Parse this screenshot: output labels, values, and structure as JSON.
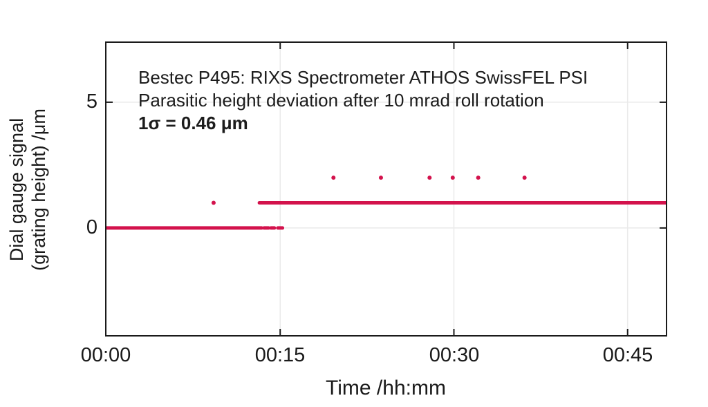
{
  "figure": {
    "background": "#ffffff",
    "text_color": "#1a1a1a"
  },
  "chart_data": {
    "type": "scatter",
    "annotation": {
      "line1": "Bestec P495: RIXS Spectrometer ATHOS SwissFEL PSI",
      "line2": "Parasitic height deviation after 10 mrad roll rotation",
      "sigma": "1σ = 0.46 μm"
    },
    "xlabel": "Time /hh:mm",
    "ylabel_line1": "Dial gauge signal",
    "ylabel_line2": "(grating height) /μm",
    "x_unit": "minutes after 00:00",
    "xlim_minutes": [
      0,
      48.3
    ],
    "ylim": [
      -4.26,
      7.36
    ],
    "x_ticks": [
      {
        "minutes": 0,
        "label": "00:00"
      },
      {
        "minutes": 15,
        "label": "00:15"
      },
      {
        "minutes": 30,
        "label": "00:30"
      },
      {
        "minutes": 45,
        "label": "00:45"
      }
    ],
    "y_ticks": [
      {
        "value": 0,
        "label": "0"
      },
      {
        "value": 5,
        "label": "5"
      }
    ],
    "grid": true,
    "legend": "none",
    "colors": {
      "series": "#d3124c",
      "axis": "#1a1a1a",
      "grid": "#eaeaea",
      "background": "#ffffff"
    },
    "series": {
      "name": "dial gauge signal",
      "line_width": 5,
      "point_radius": 3,
      "segments": [
        {
          "y": 0,
          "x_start_min": 0.0,
          "x_end_min": 13.4
        },
        {
          "y": 0,
          "x_start_min": 13.6,
          "x_end_min": 14.0
        },
        {
          "y": 0,
          "x_start_min": 14.2,
          "x_end_min": 14.5
        },
        {
          "y": 0,
          "x_start_min": 14.8,
          "x_end_min": 15.2
        },
        {
          "y": 1,
          "x_start_min": 13.2,
          "x_end_min": 48.3
        }
      ],
      "points": [
        {
          "x_min": 9.25,
          "y": 1
        },
        {
          "x_min": 19.6,
          "y": 2
        },
        {
          "x_min": 23.7,
          "y": 2
        },
        {
          "x_min": 27.9,
          "y": 2
        },
        {
          "x_min": 29.9,
          "y": 2
        },
        {
          "x_min": 32.1,
          "y": 2
        },
        {
          "x_min": 36.1,
          "y": 2
        }
      ]
    }
  }
}
